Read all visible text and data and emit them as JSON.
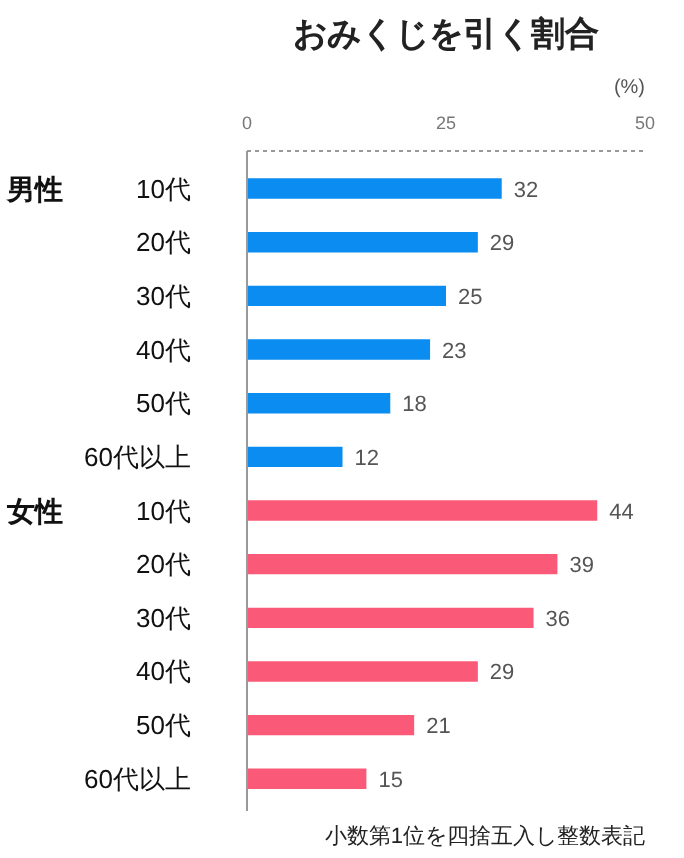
{
  "chart_data": {
    "type": "bar",
    "orientation": "horizontal",
    "title": "おみくじを引く割合",
    "xlabel": "(%)",
    "categories": [
      "10代",
      "20代",
      "30代",
      "40代",
      "50代",
      "60代以上",
      "10代",
      "20代",
      "30代",
      "40代",
      "50代",
      "60代以上"
    ],
    "values": [
      32,
      29,
      25,
      23,
      18,
      12,
      44,
      39,
      36,
      29,
      21,
      15
    ],
    "colors": [
      "#0a8cf0",
      "#0a8cf0",
      "#0a8cf0",
      "#0a8cf0",
      "#0a8cf0",
      "#0a8cf0",
      "#fa5a78",
      "#fa5a78",
      "#fa5a78",
      "#fa5a78",
      "#fa5a78",
      "#fa5a78"
    ],
    "xlim": [
      0,
      50
    ],
    "xticks": [
      0,
      25,
      50
    ],
    "data_labels": true,
    "grid": false,
    "legend": false,
    "annotations": [
      "男性",
      "女性",
      "小数第1位を四捨五入し整数表記"
    ]
  }
}
